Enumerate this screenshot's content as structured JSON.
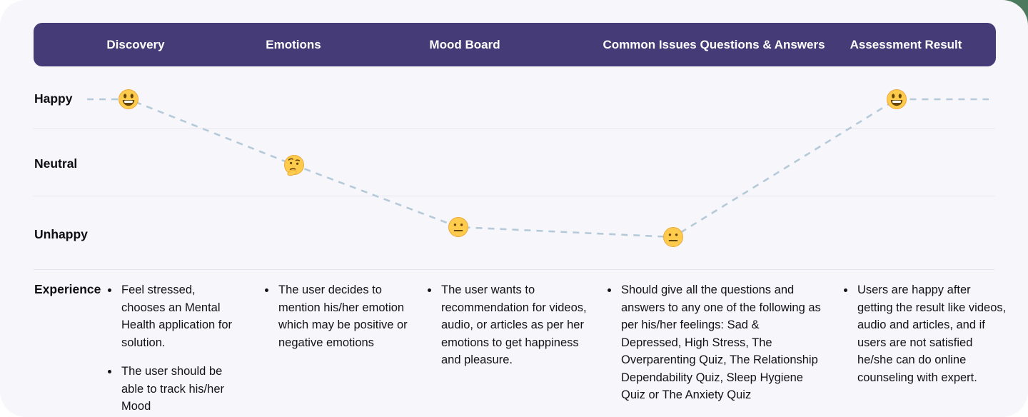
{
  "header": {
    "columns": [
      {
        "label": "Discovery"
      },
      {
        "label": "Emotions"
      },
      {
        "label": "Mood Board"
      },
      {
        "label": "Common Issues Questions & Answers"
      },
      {
        "label": "Assessment Result"
      }
    ]
  },
  "mood_rows": [
    {
      "label": "Happy"
    },
    {
      "label": "Neutral"
    },
    {
      "label": "Unhappy"
    }
  ],
  "experience_row": {
    "label": "Experience"
  },
  "journey": {
    "points": [
      {
        "stage": "Discovery",
        "mood": "Happy",
        "face": "grinning-face-icon"
      },
      {
        "stage": "Emotions",
        "mood": "Neutral",
        "face": "thinking-face-icon"
      },
      {
        "stage": "Mood Board",
        "mood": "Unhappy",
        "face": "neutral-face-icon"
      },
      {
        "stage": "Common Issues Questions & Answers",
        "mood": "Unhappy",
        "face": "neutral-face-icon"
      },
      {
        "stage": "Assessment Result",
        "mood": "Happy",
        "face": "grinning-face-icon"
      }
    ]
  },
  "experience": {
    "columns": [
      {
        "bullets": [
          "Feel stressed, chooses an Mental Health application for solution.",
          "The user should be able to track his/her Mood"
        ]
      },
      {
        "bullets": [
          "The user decides to mention his/her emotion which may be positive or negative emotions"
        ]
      },
      {
        "bullets": [
          "The user wants to recommendation for videos, audio, or articles as per her emotions to get happiness and pleasure."
        ]
      },
      {
        "bullets": [
          "Should give all the questions and answers to any one of the following as per his/her feelings: Sad & Depressed, High Stress, The Overparenting Quiz, The Relationship Dependability Quiz, Sleep Hygiene Quiz or The Anxiety Quiz"
        ]
      },
      {
        "bullets": [
          "Users are happy after getting the result like videos, audio and articles, and if users are not satisfied he/she can do online counseling with expert."
        ]
      }
    ]
  },
  "colors": {
    "header_bar": "#453B77",
    "card_background": "#F7F6FB",
    "dash_line": "#B5CAD8",
    "divider": "#E6E5EF",
    "emoji_yellow": "#FFCB4C",
    "emoji_feature": "#664500",
    "corner_accent_green": "#4B7A5E"
  }
}
